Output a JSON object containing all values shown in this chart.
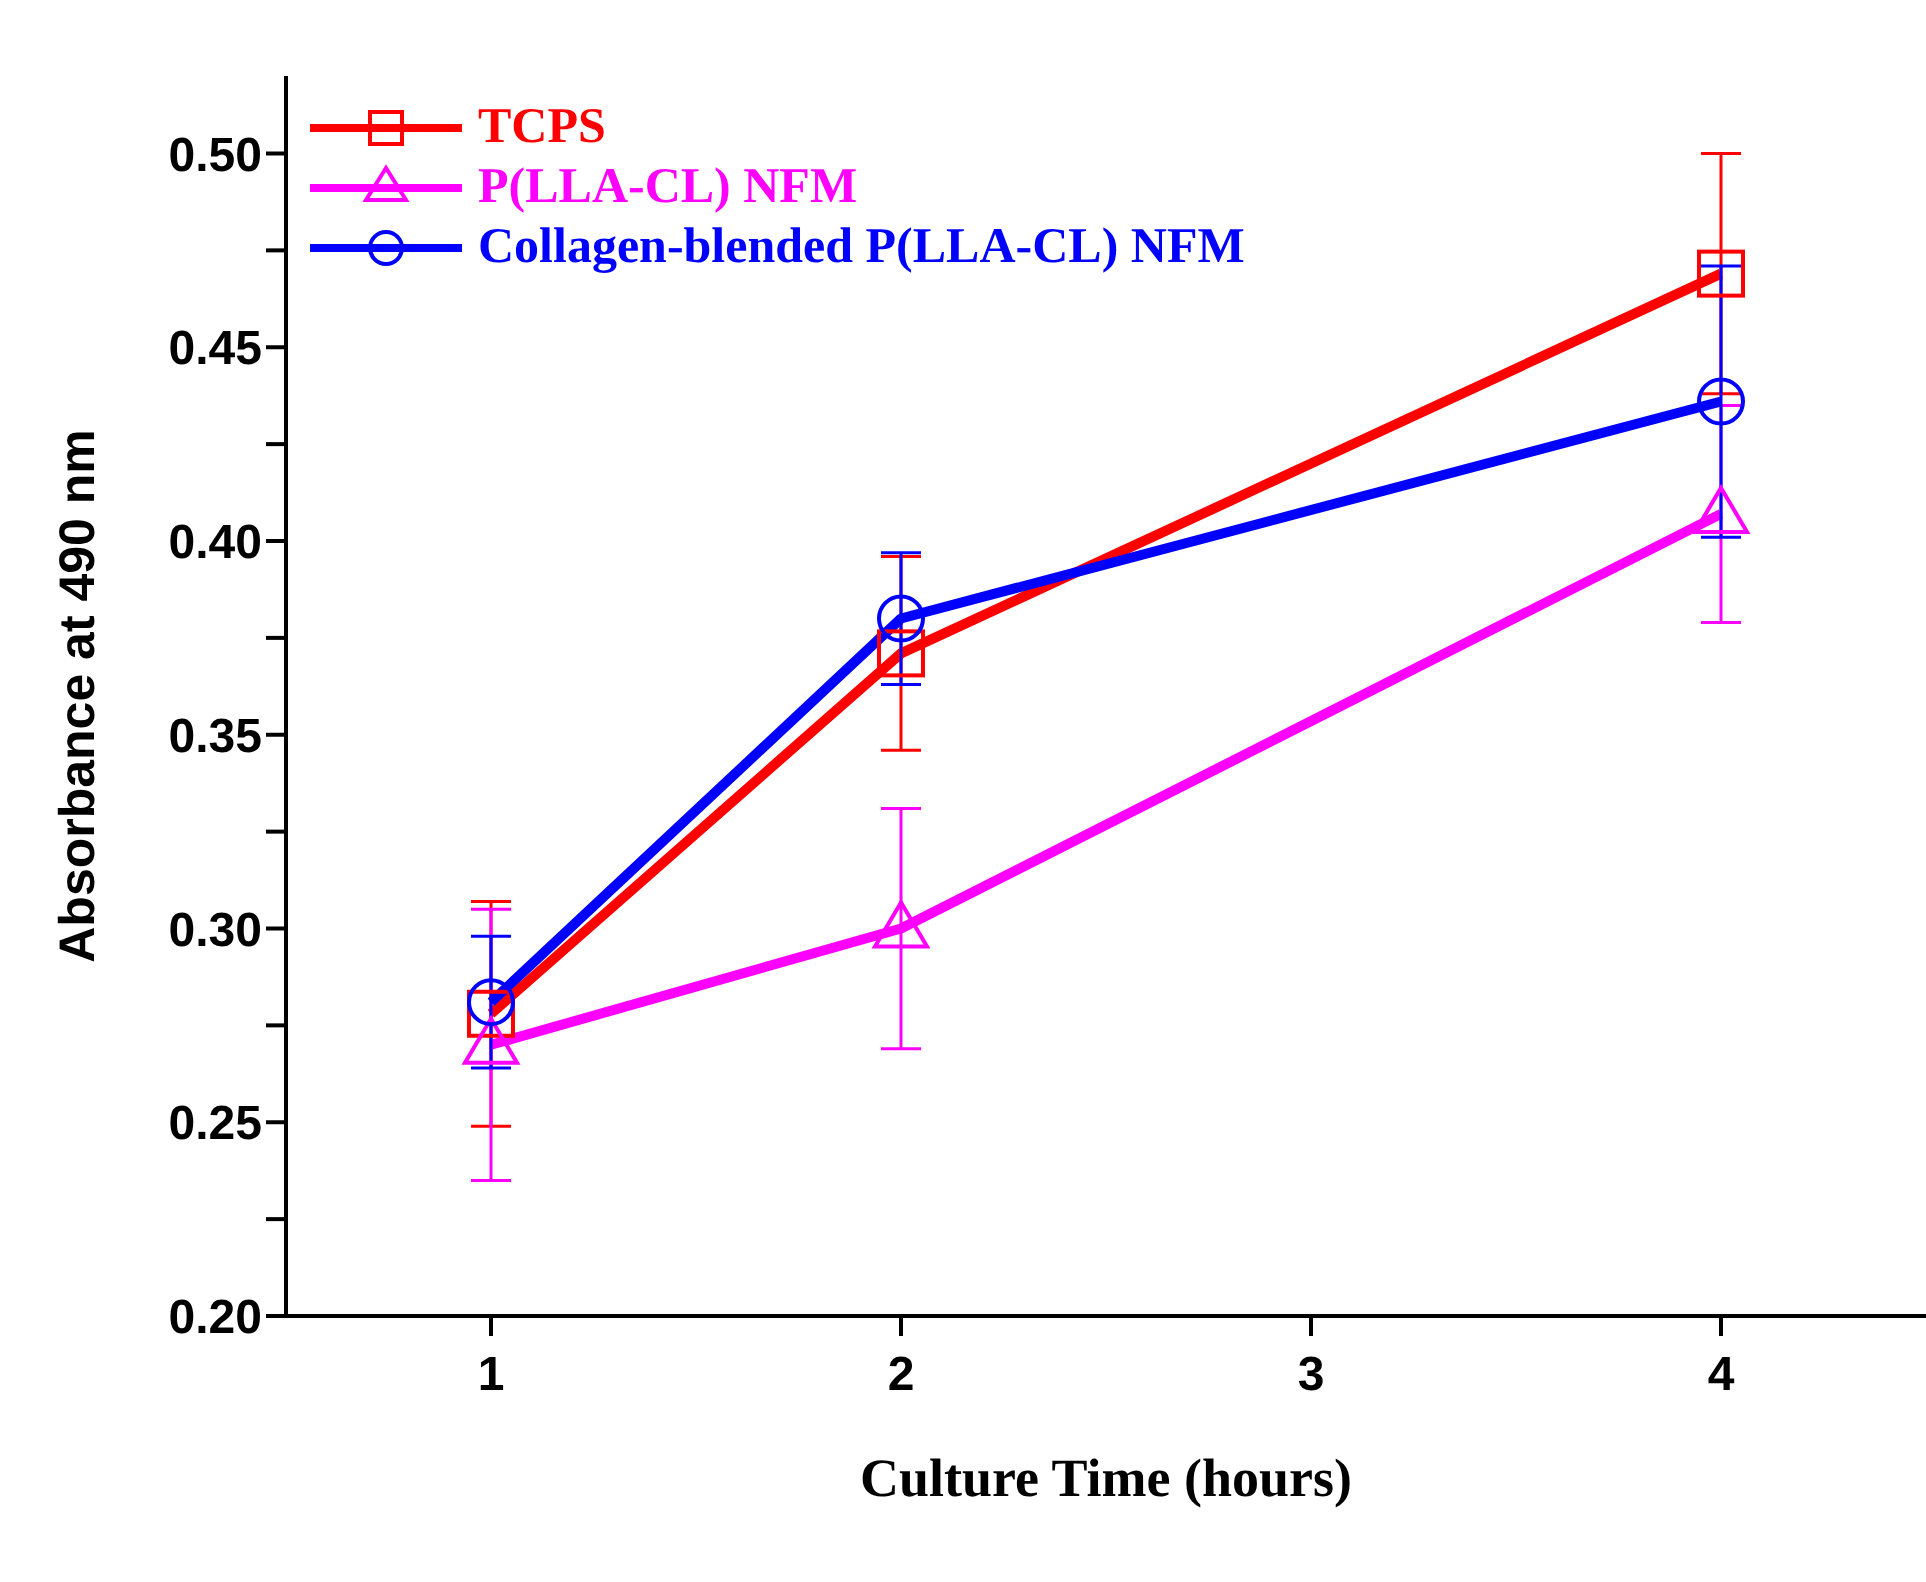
{
  "chart_data": {
    "type": "line",
    "xlabel": "Culture Time (hours)",
    "ylabel": "Absorbance at 490 nm",
    "x": [
      1,
      2,
      4
    ],
    "series": [
      {
        "name": "TCPS",
        "color": "#ff0000",
        "marker": "square",
        "values": [
          0.278,
          0.371,
          0.469
        ],
        "errors": [
          0.029,
          0.025,
          0.031
        ]
      },
      {
        "name": "P(LLA-CL) NFM",
        "color": "#ff00ff",
        "marker": "triangle",
        "values": [
          0.27,
          0.3,
          0.407
        ],
        "errors": [
          0.035,
          0.031,
          0.028
        ]
      },
      {
        "name": "Collagen-blended P(LLA-CL) NFM",
        "color": "#0000ff",
        "marker": "circle",
        "values": [
          0.281,
          0.38,
          0.436
        ],
        "errors": [
          0.017,
          0.017,
          0.035
        ]
      }
    ],
    "xlim": [
      0.5,
      4.5
    ],
    "xticks": [
      1,
      2,
      3,
      4
    ],
    "ylim": [
      0.2,
      0.52
    ],
    "yticks": [
      {
        "value": 0.2,
        "label": "0.20"
      },
      {
        "value": 0.225,
        "label": null
      },
      {
        "value": 0.25,
        "label": "0.25"
      },
      {
        "value": 0.275,
        "label": null
      },
      {
        "value": 0.3,
        "label": "0.30"
      },
      {
        "value": 0.325,
        "label": null
      },
      {
        "value": 0.35,
        "label": "0.35"
      },
      {
        "value": 0.375,
        "label": null
      },
      {
        "value": 0.4,
        "label": "0.40"
      },
      {
        "value": 0.425,
        "label": null
      },
      {
        "value": 0.45,
        "label": "0.45"
      },
      {
        "value": 0.475,
        "label": null
      },
      {
        "value": 0.5,
        "label": "0.50"
      }
    ],
    "grid": false,
    "legend": "top left",
    "line_style": "solid"
  }
}
